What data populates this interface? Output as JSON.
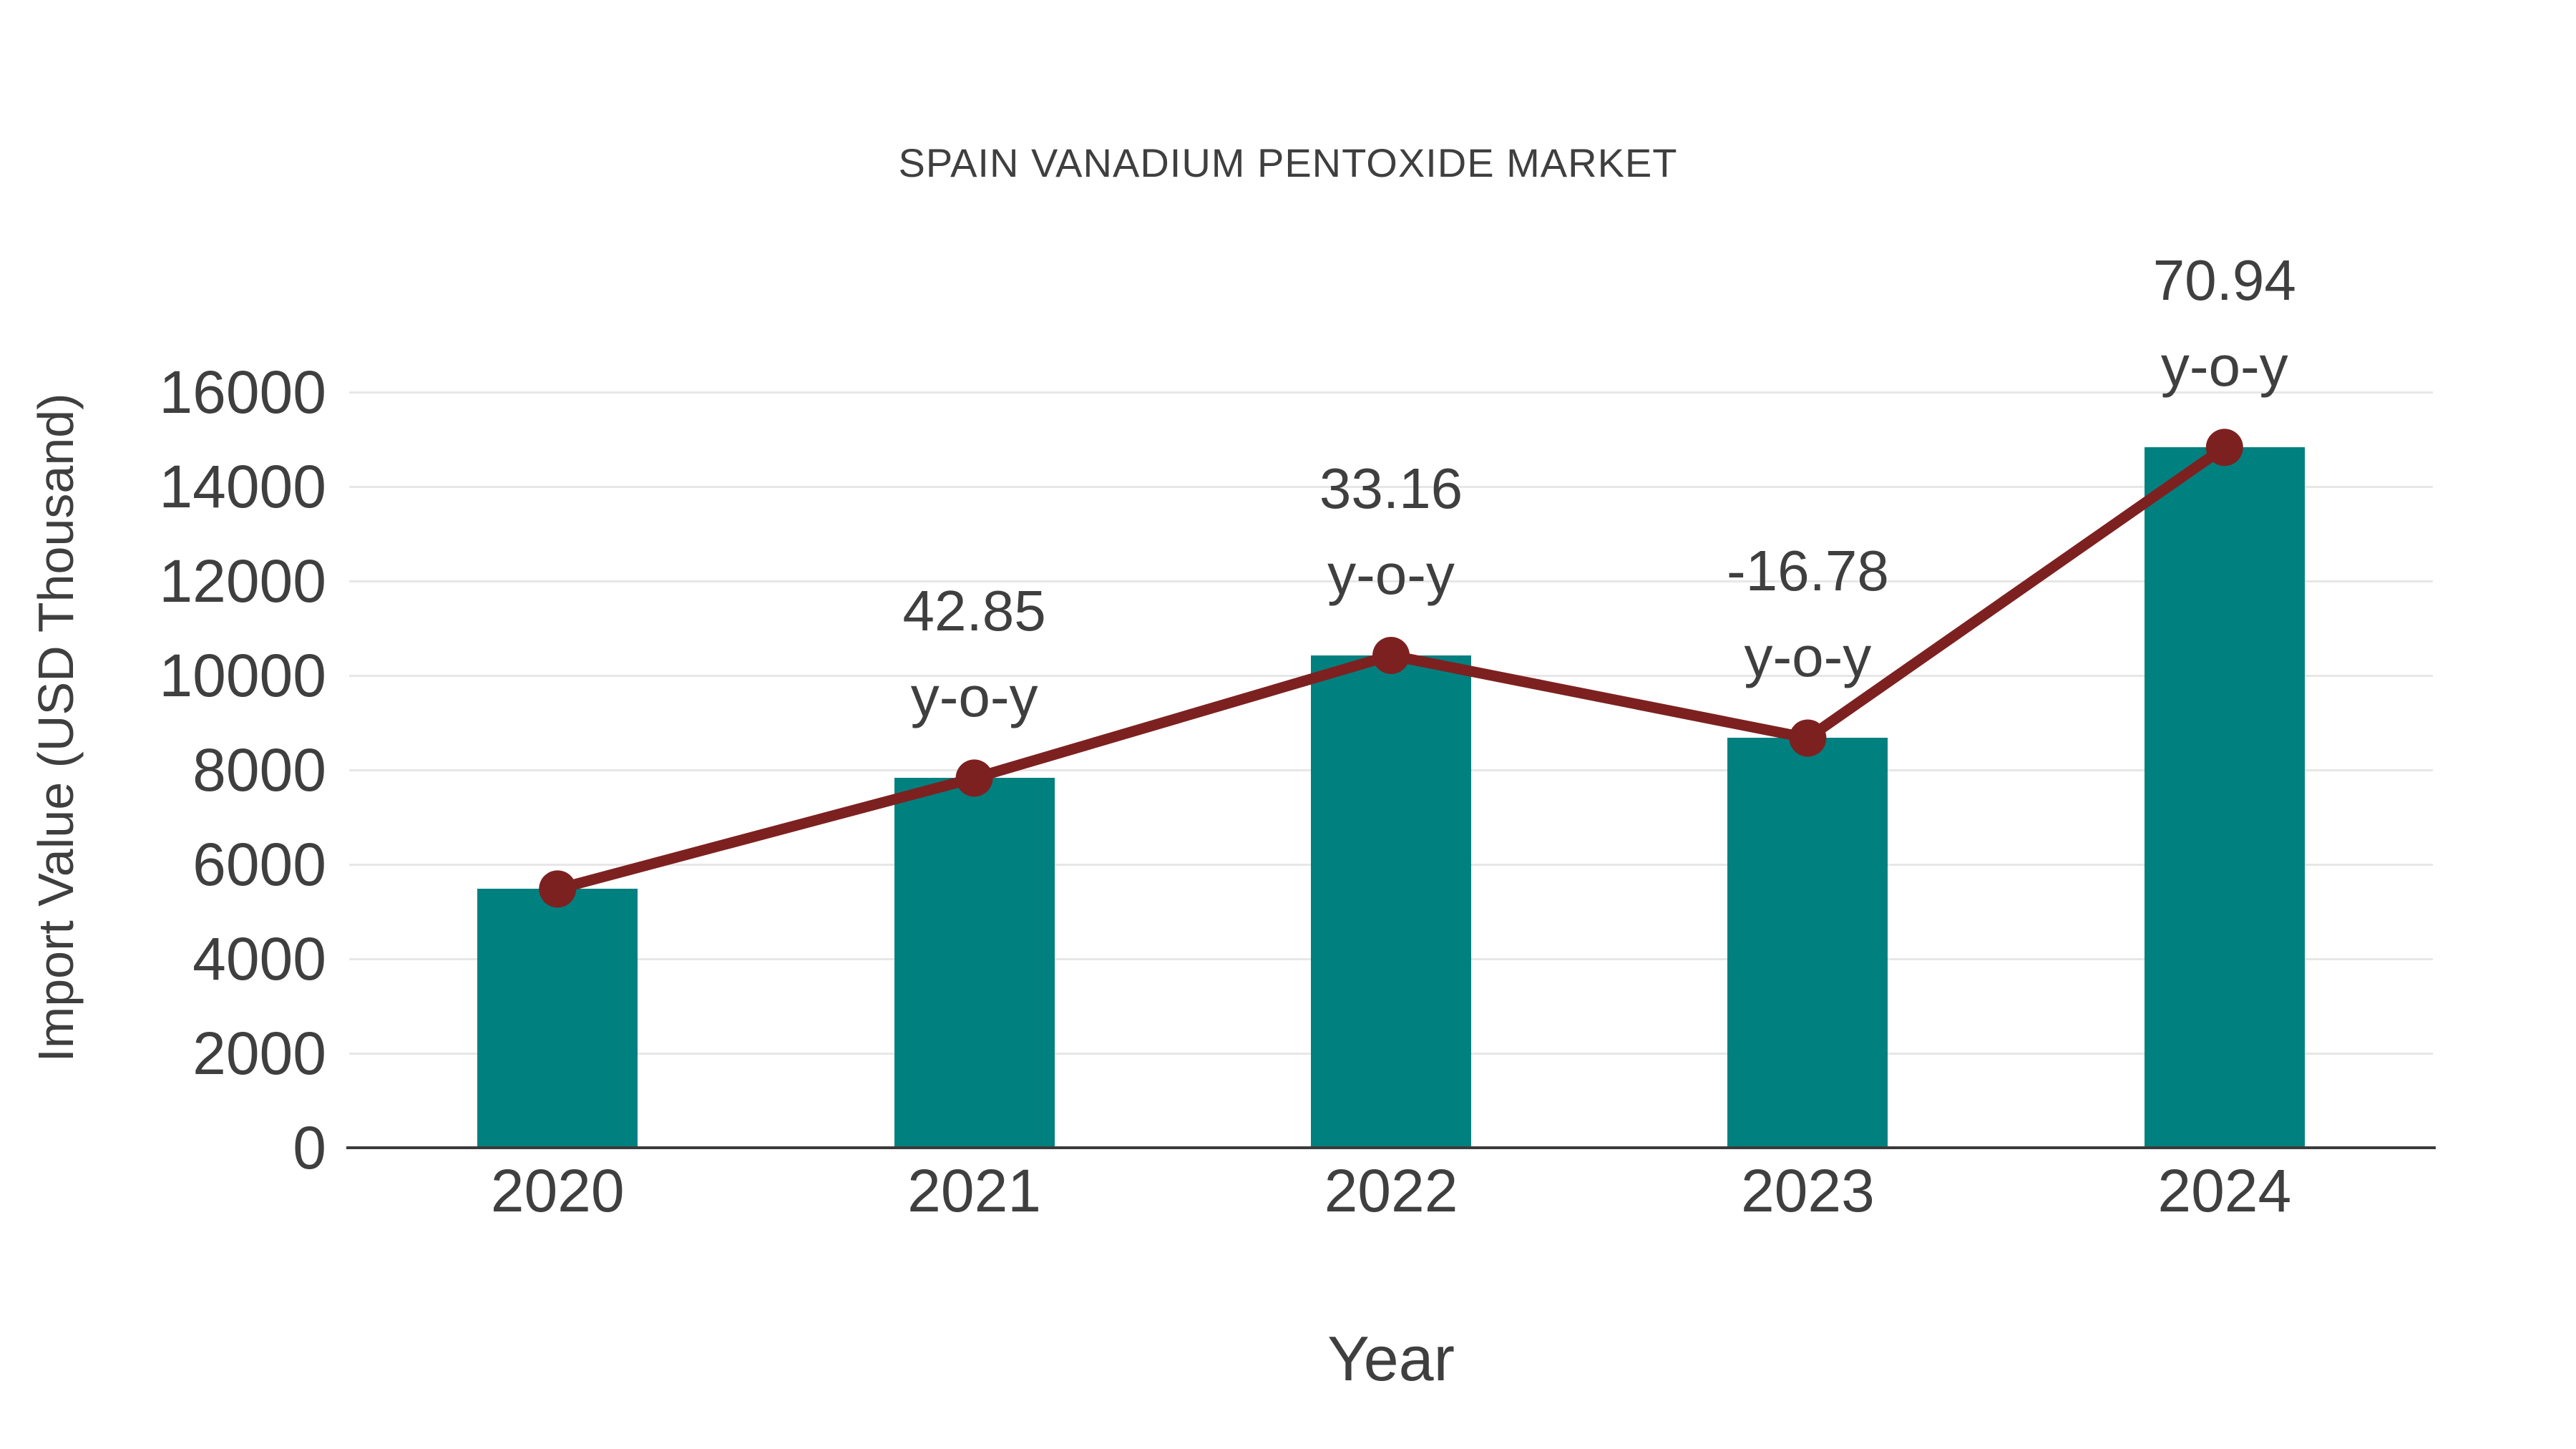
{
  "chart_data": {
    "type": "bar",
    "title": "SPAIN VANADIUM PENTOXIDE MARKET",
    "xlabel": "Year",
    "ylabel": "Import Value (USD Thousand)",
    "categories": [
      "2020",
      "2021",
      "2022",
      "2023",
      "2024"
    ],
    "series": [
      {
        "name": "Import Value (USD Thousand)",
        "type": "bar",
        "values": [
          5480,
          7828,
          10424,
          8675,
          14830
        ]
      },
      {
        "name": "Import Value trend",
        "type": "line",
        "values": [
          5480,
          7828,
          10424,
          8675,
          14830
        ]
      }
    ],
    "annotations": [
      {
        "category_index": 1,
        "text": "42.85",
        "suffix": "y-o-y",
        "yoy_percent": 42.85
      },
      {
        "category_index": 2,
        "text": "33.16",
        "suffix": "y-o-y",
        "yoy_percent": 33.16
      },
      {
        "category_index": 3,
        "text": "-16.78",
        "suffix": "y-o-y",
        "yoy_percent": -16.78
      },
      {
        "category_index": 4,
        "text": "70.94",
        "suffix": "y-o-y",
        "yoy_percent": 70.94
      }
    ],
    "yticks": [
      0,
      2000,
      4000,
      6000,
      8000,
      10000,
      12000,
      14000,
      16000
    ],
    "ylim": [
      0,
      17800
    ],
    "grid": true,
    "legend_position": "none",
    "colors": {
      "bar": "#018080",
      "line": "#7d2120",
      "marker": "#7d2120",
      "grid": "#e7e7e7",
      "axis": "#3b3b3b",
      "text": "#3f3f3f"
    }
  }
}
